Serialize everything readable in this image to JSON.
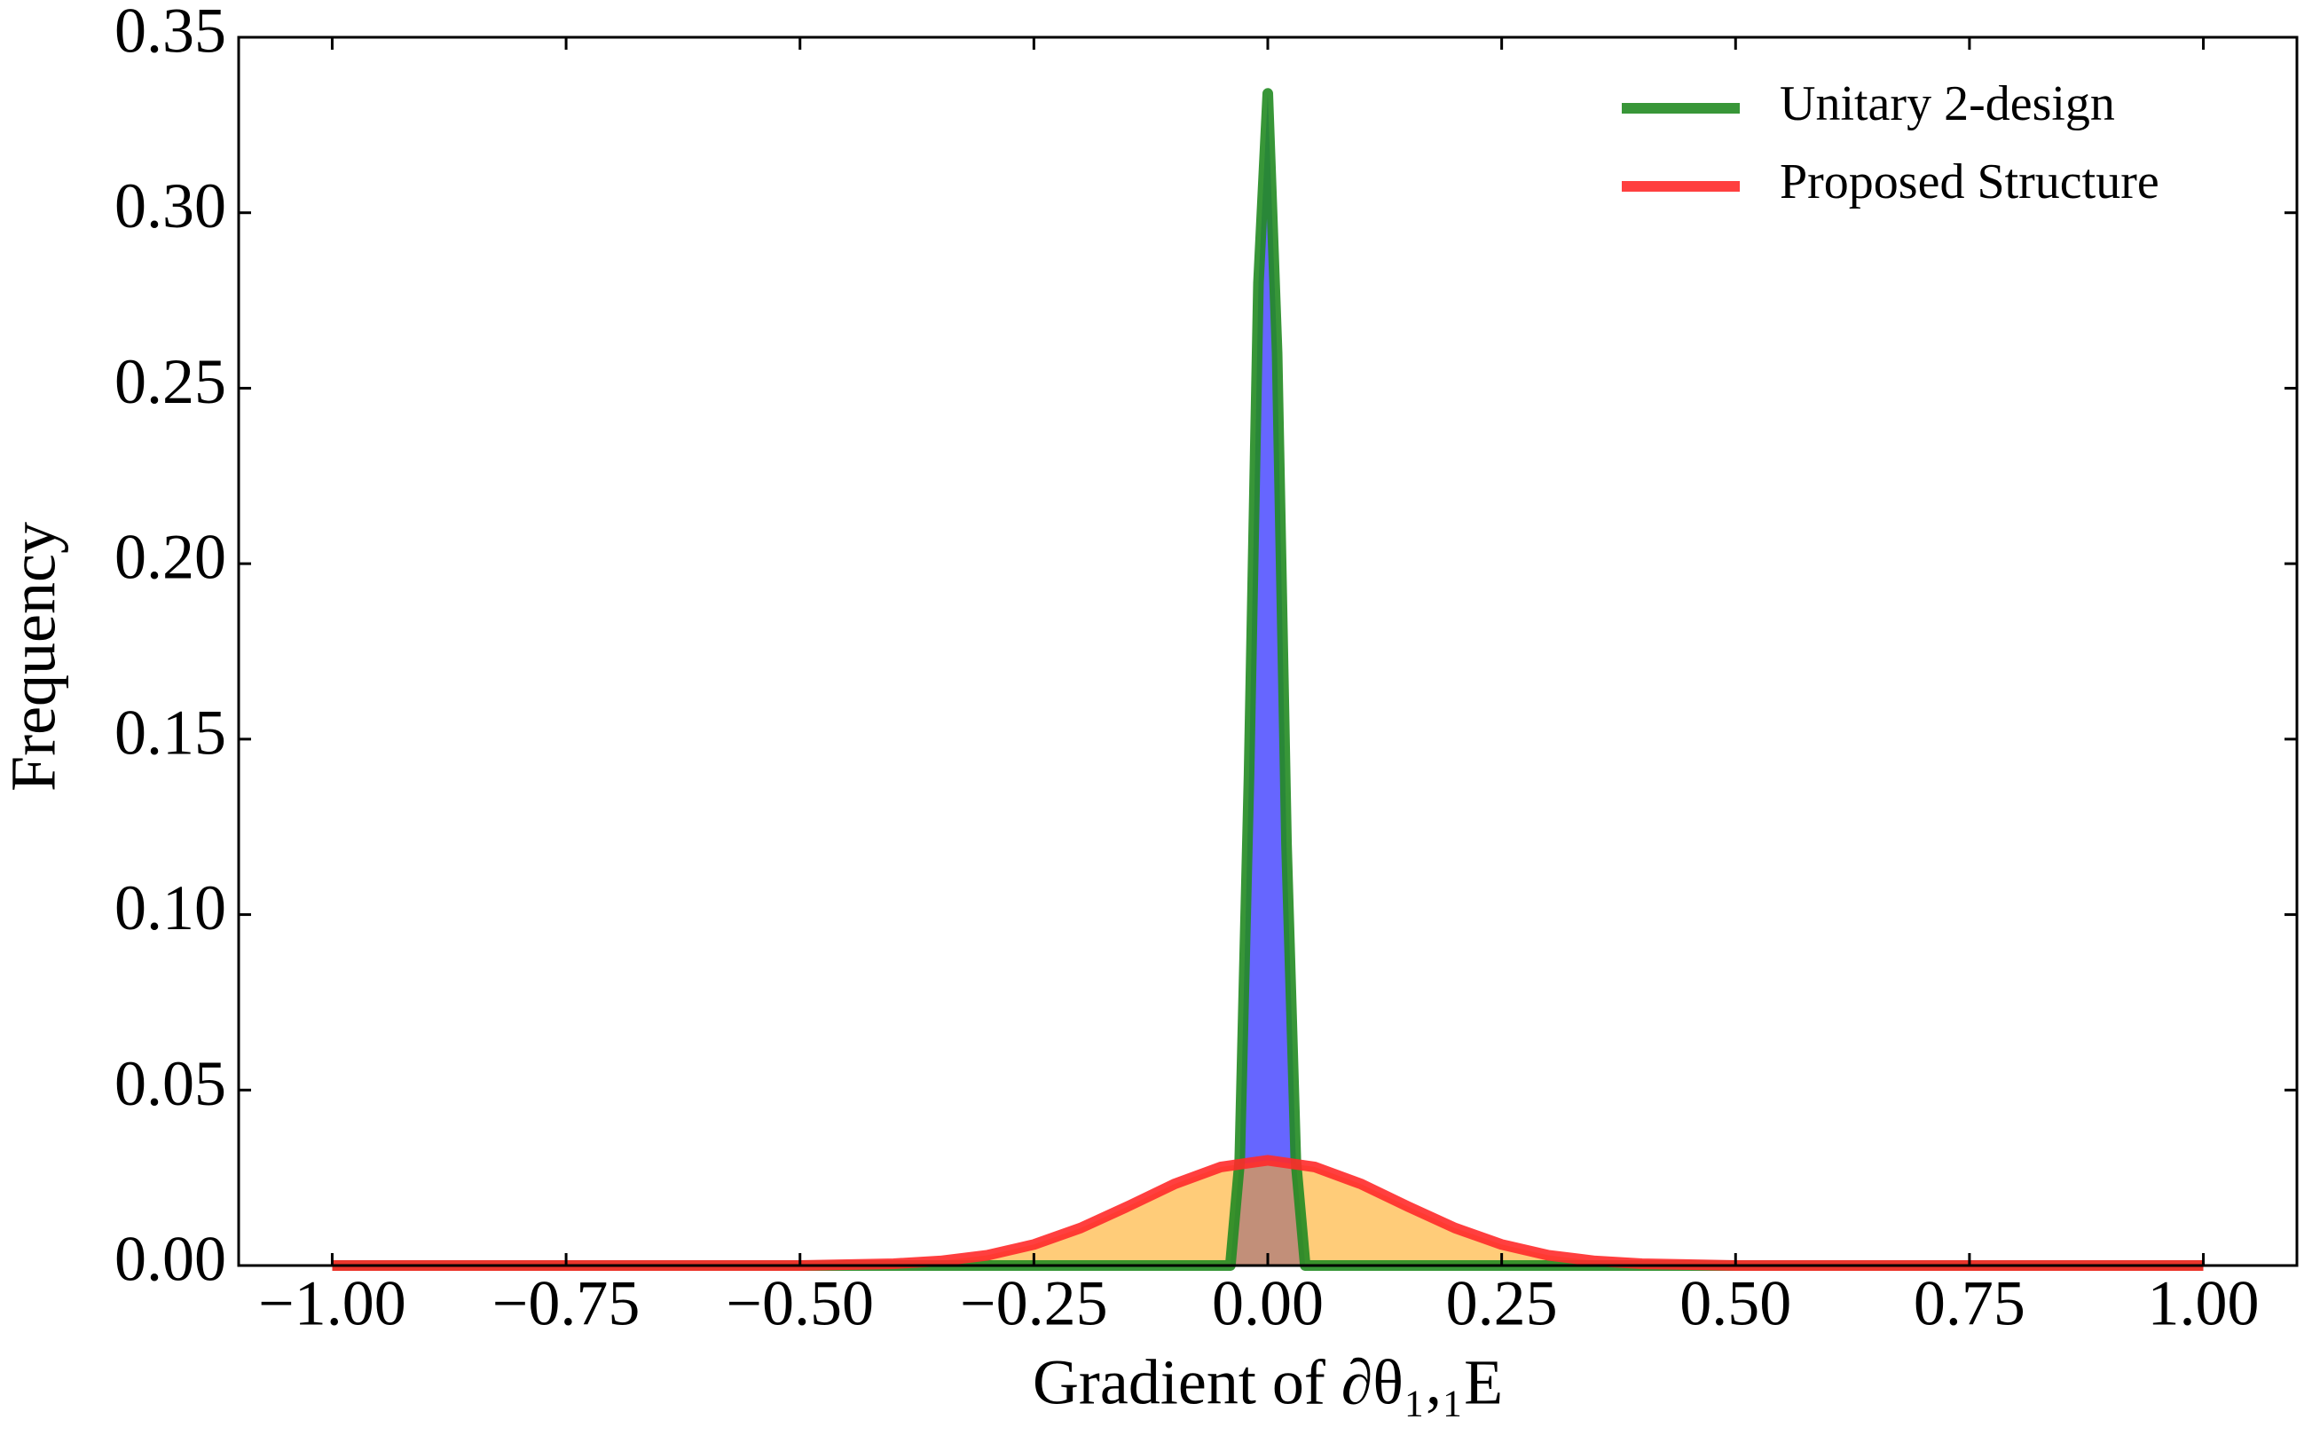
{
  "chart_data": {
    "type": "line",
    "xlabel": "Gradient of ∂θ₁,₁E",
    "ylabel": "Frequency",
    "xlim": [
      -1.1,
      1.1
    ],
    "ylim": [
      0,
      0.35
    ],
    "xticks": [
      {
        "value": -1,
        "label": "−1.00"
      },
      {
        "value": -0.75,
        "label": "−0.75"
      },
      {
        "value": -0.5,
        "label": "−0.50"
      },
      {
        "value": -0.25,
        "label": "−0.25"
      },
      {
        "value": 0,
        "label": "0.00"
      },
      {
        "value": 0.25,
        "label": "0.25"
      },
      {
        "value": 0.5,
        "label": "0.50"
      },
      {
        "value": 0.75,
        "label": "0.75"
      },
      {
        "value": 1,
        "label": "1.00"
      }
    ],
    "yticks": [
      {
        "value": 0,
        "label": "0.00"
      },
      {
        "value": 0.05,
        "label": "0.05"
      },
      {
        "value": 0.1,
        "label": "0.10"
      },
      {
        "value": 0.15,
        "label": "0.15"
      },
      {
        "value": 0.2,
        "label": "0.20"
      },
      {
        "value": 0.25,
        "label": "0.25"
      },
      {
        "value": 0.3,
        "label": "0.30"
      },
      {
        "value": 0.35,
        "label": "0.35"
      }
    ],
    "legend": "upper right",
    "series": [
      {
        "name": "Unitary 2-design",
        "color": "#228b22",
        "fill": "#6666ff",
        "x": [
          -1,
          -0.3,
          -0.04,
          -0.03,
          -0.02,
          -0.01,
          0,
          0.01,
          0.02,
          0.03,
          0.04,
          0.3,
          1
        ],
        "values": [
          0,
          0,
          0,
          0.03,
          0.14,
          0.28,
          0.334,
          0.26,
          0.12,
          0.03,
          0,
          0,
          0
        ]
      },
      {
        "name": "Proposed Structure",
        "color": "#ff2a2a",
        "fill": "#ffaa20",
        "x": [
          -1,
          -0.5,
          -0.4,
          -0.35,
          -0.3,
          -0.25,
          -0.2,
          -0.15,
          -0.1,
          -0.05,
          0,
          0.05,
          0.1,
          0.15,
          0.2,
          0.25,
          0.3,
          0.35,
          0.4,
          0.5,
          1
        ],
        "values": [
          0,
          0,
          0.0005,
          0.0013,
          0.0029,
          0.006,
          0.0107,
          0.0168,
          0.0232,
          0.0281,
          0.03,
          0.0281,
          0.0232,
          0.0168,
          0.0107,
          0.006,
          0.0029,
          0.0013,
          0.0005,
          0,
          0
        ]
      }
    ]
  }
}
